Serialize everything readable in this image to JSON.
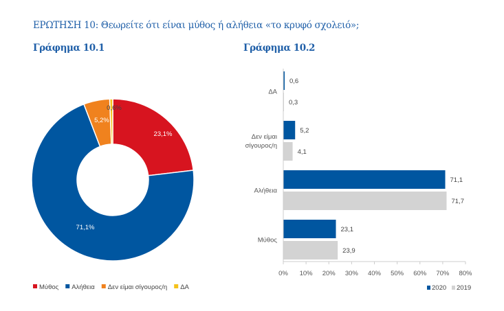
{
  "title": "ΕΡΩΤΗΣΗ 10: Θεωρείτε ότι είναι μύθος ή αλήθεια «το κρυφό σχολειό»;",
  "chart_data": [
    {
      "type": "pie",
      "subtitle": "Γράφημα 10.1",
      "donut": true,
      "categories": [
        "Μύθος",
        "Αλήθεια",
        "Δεν είμαι σίγουρος/η",
        "ΔΑ"
      ],
      "values": [
        23.1,
        71.1,
        5.2,
        0.6
      ],
      "labels": [
        "23,1%",
        "71,1%",
        "5,2%",
        "0,6%"
      ],
      "colors": [
        "#d7141f",
        "#0056a0",
        "#f0821e",
        "#f5c21b"
      ],
      "legend": "bottom"
    },
    {
      "type": "bar",
      "orientation": "horizontal",
      "subtitle": "Γράφημα 10.2",
      "categories": [
        "ΔΑ",
        "Δεν είμαι σίγουρος/η",
        "Αλήθεια",
        "Μύθος"
      ],
      "category_lines": [
        [
          "ΔΑ"
        ],
        [
          "Δεν είμαι",
          "σίγουρος/η"
        ],
        [
          "Αλήθεια"
        ],
        [
          "Μύθος"
        ]
      ],
      "series": [
        {
          "name": "2020",
          "values": [
            0.6,
            5.2,
            71.1,
            23.1
          ],
          "labels": [
            "0,6",
            "5,2",
            "71,1",
            "23,1"
          ],
          "color": "#0056a0"
        },
        {
          "name": "2019",
          "values": [
            0.3,
            4.1,
            71.7,
            23.9
          ],
          "labels": [
            "0,3",
            "4,1",
            "71,7",
            "23,9"
          ],
          "color": "#d3d3d3"
        }
      ],
      "xlim": [
        0,
        80
      ],
      "xticks": [
        "0%",
        "10%",
        "20%",
        "30%",
        "40%",
        "50%",
        "60%",
        "70%",
        "80%"
      ],
      "legend": "bottom-right",
      "grid": false
    }
  ]
}
